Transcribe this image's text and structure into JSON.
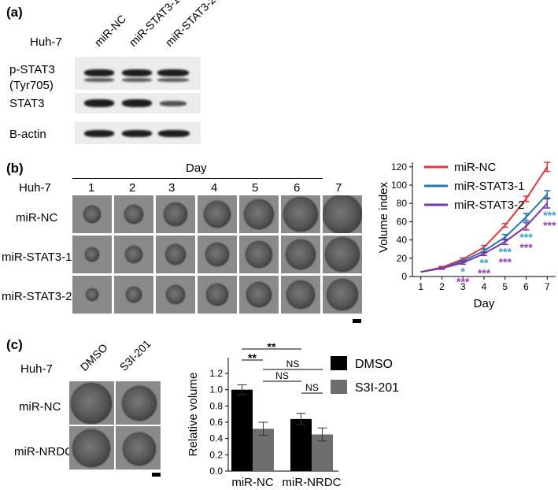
{
  "panel_a": {
    "label": "(a)",
    "cell_line": "Huh-7",
    "lanes": [
      "miR-NC",
      "miR-STAT3-1",
      "miR-STAT3-2"
    ],
    "rows": [
      "p-STAT3",
      "(Tyr705)",
      "STAT3",
      "B-actin"
    ]
  },
  "panel_b": {
    "label": "(b)",
    "day_header": "Day",
    "cell_line": "Huh-7",
    "days": [
      "1",
      "2",
      "3",
      "4",
      "5",
      "6",
      "7"
    ],
    "rows": [
      "miR-NC",
      "miR-STAT3-1",
      "miR-STAT3-2"
    ]
  },
  "panel_c": {
    "label": "(c)",
    "cell_line": "Huh-7",
    "columns": [
      "DMSO",
      "S3I-201"
    ],
    "rows": [
      "miR-NC",
      "miR-NRDC"
    ]
  },
  "chart_data": [
    {
      "type": "line",
      "xlabel": "Day",
      "ylabel": "Volume index",
      "x": [
        1,
        2,
        3,
        4,
        5,
        6,
        7
      ],
      "xlim": [
        0.6,
        7.4
      ],
      "ylim": [
        0,
        125
      ],
      "yticks": [
        0,
        20,
        40,
        60,
        80,
        100,
        120
      ],
      "legend": "top-left",
      "series": [
        {
          "name": "miR-NC",
          "color": "#e8343a",
          "values": [
            5,
            10,
            19,
            32,
            56,
            85,
            120
          ],
          "error": [
            0.5,
            1,
            1.5,
            2,
            2,
            3,
            5
          ]
        },
        {
          "name": "miR-STAT3-1",
          "color": "#2079b4",
          "values": [
            5,
            9,
            17,
            28,
            43,
            65,
            90
          ],
          "error": [
            0.5,
            1,
            1.5,
            2,
            3,
            4,
            4
          ]
        },
        {
          "name": "miR-STAT3-2",
          "color": "#7b35a8",
          "values": [
            5,
            9,
            15,
            25,
            38,
            55,
            80
          ],
          "error": [
            0.5,
            1,
            1.5,
            2,
            3,
            4,
            5
          ]
        }
      ],
      "annotations": [
        {
          "x": 3,
          "row": 1,
          "text": "*",
          "color": "#2fa5c8"
        },
        {
          "x": 3,
          "row": 2,
          "text": "***",
          "color": "#9b3fb5"
        },
        {
          "x": 4,
          "row": 1,
          "text": "**",
          "color": "#2fa5c8"
        },
        {
          "x": 4,
          "row": 2,
          "text": "***",
          "color": "#9b3fb5"
        },
        {
          "x": 5,
          "row": 1,
          "text": "***",
          "color": "#2fa5c8"
        },
        {
          "x": 5,
          "row": 2,
          "text": "***",
          "color": "#9b3fb5"
        },
        {
          "x": 6,
          "row": 1,
          "text": "***",
          "color": "#2fa5c8"
        },
        {
          "x": 6,
          "row": 2,
          "text": "***",
          "color": "#9b3fb5"
        },
        {
          "x": 7,
          "row": 1,
          "text": "***",
          "color": "#2fa5c8"
        },
        {
          "x": 7,
          "row": 2,
          "text": "***",
          "color": "#9b3fb5"
        }
      ]
    },
    {
      "type": "bar",
      "ylabel": "Relative volume",
      "categories": [
        "miR-NC",
        "miR-NRDC"
      ],
      "ylim": [
        0,
        1.2
      ],
      "yticks": [
        "0.0",
        "0.2",
        "0.4",
        "0.6",
        "0.8",
        "1.0",
        "1.2"
      ],
      "legend": "right",
      "series": [
        {
          "name": "DMSO",
          "color": "#000000",
          "values": [
            1.0,
            0.64
          ],
          "error": [
            0.06,
            0.07
          ]
        },
        {
          "name": "S3I-201",
          "color": "#6e6e6e",
          "values": [
            0.52,
            0.45
          ],
          "error": [
            0.08,
            0.08
          ]
        }
      ],
      "significance": [
        "**",
        "**",
        "NS",
        "NS",
        "NS"
      ]
    }
  ]
}
